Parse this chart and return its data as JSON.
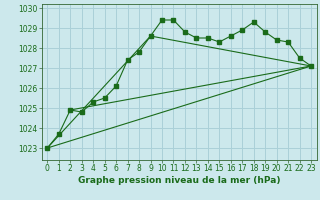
{
  "title": "Graphe pression niveau de la mer (hPa)",
  "background_color": "#cce8ec",
  "grid_color": "#aad0d8",
  "line_color": "#1a6b1a",
  "x_ticks": [
    0,
    1,
    2,
    3,
    4,
    5,
    6,
    7,
    8,
    9,
    10,
    11,
    12,
    13,
    14,
    15,
    16,
    17,
    18,
    19,
    20,
    21,
    22,
    23
  ],
  "y_ticks": [
    1023,
    1024,
    1025,
    1026,
    1027,
    1028,
    1029,
    1030
  ],
  "ylim": [
    1022.4,
    1030.2
  ],
  "xlim": [
    -0.5,
    23.5
  ],
  "series1_x": [
    0,
    1,
    2,
    3,
    4,
    5,
    6,
    7,
    8,
    9,
    10,
    11,
    12,
    13,
    14,
    15,
    16,
    17,
    18,
    19,
    20,
    21,
    22,
    23
  ],
  "series1_y": [
    1023.0,
    1023.7,
    1024.9,
    1024.8,
    1025.3,
    1025.5,
    1026.1,
    1027.4,
    1027.8,
    1028.6,
    1029.4,
    1029.4,
    1028.8,
    1028.5,
    1028.5,
    1028.3,
    1028.6,
    1028.9,
    1029.3,
    1028.8,
    1028.4,
    1028.3,
    1027.5,
    1027.1
  ],
  "series2_x": [
    0,
    23
  ],
  "series2_y": [
    1023.0,
    1027.1
  ],
  "series3_x": [
    2,
    23
  ],
  "series3_y": [
    1024.9,
    1027.1
  ],
  "series4_x": [
    0,
    9,
    23
  ],
  "series4_y": [
    1023.0,
    1028.6,
    1027.1
  ],
  "title_fontsize": 6.5,
  "tick_fontsize": 5.5,
  "marker_size": 2.5,
  "line_width": 0.8
}
